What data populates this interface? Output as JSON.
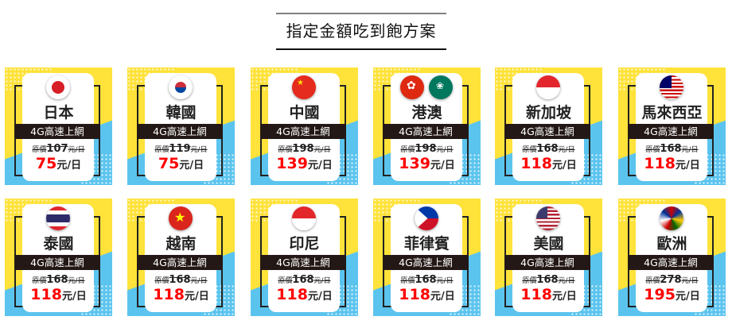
{
  "title": "指定金額吃到飽方案",
  "band_label": "4G高速上網",
  "orig_prefix": "原價",
  "unit": "元/日",
  "colors": {
    "yellow": "#ffe23a",
    "blue": "#5bc4ee",
    "band": "#231815",
    "price": "#ff0000"
  },
  "plans": [
    {
      "name": "日本",
      "orig": "107",
      "price": "75",
      "flag": "japan-flag-icon"
    },
    {
      "name": "韓國",
      "orig": "119",
      "price": "75",
      "flag": "korea-flag-icon"
    },
    {
      "name": "中國",
      "orig": "198",
      "price": "139",
      "flag": "china-flag-icon"
    },
    {
      "name": "港澳",
      "orig": "198",
      "price": "139",
      "flag": "hongkong-macau-flag-icon"
    },
    {
      "name": "新加坡",
      "orig": "168",
      "price": "118",
      "flag": "singapore-flag-icon"
    },
    {
      "name": "馬來西亞",
      "orig": "168",
      "price": "118",
      "flag": "malaysia-flag-icon"
    },
    {
      "name": "泰國",
      "orig": "168",
      "price": "118",
      "flag": "thailand-flag-icon"
    },
    {
      "name": "越南",
      "orig": "168",
      "price": "118",
      "flag": "vietnam-flag-icon"
    },
    {
      "name": "印尼",
      "orig": "168",
      "price": "118",
      "flag": "indonesia-flag-icon"
    },
    {
      "name": "菲律賓",
      "orig": "168",
      "price": "118",
      "flag": "philippines-flag-icon"
    },
    {
      "name": "美國",
      "orig": "168",
      "price": "118",
      "flag": "usa-flag-icon"
    },
    {
      "name": "歐洲",
      "orig": "278",
      "price": "195",
      "flag": "europe-flags-icon"
    }
  ]
}
